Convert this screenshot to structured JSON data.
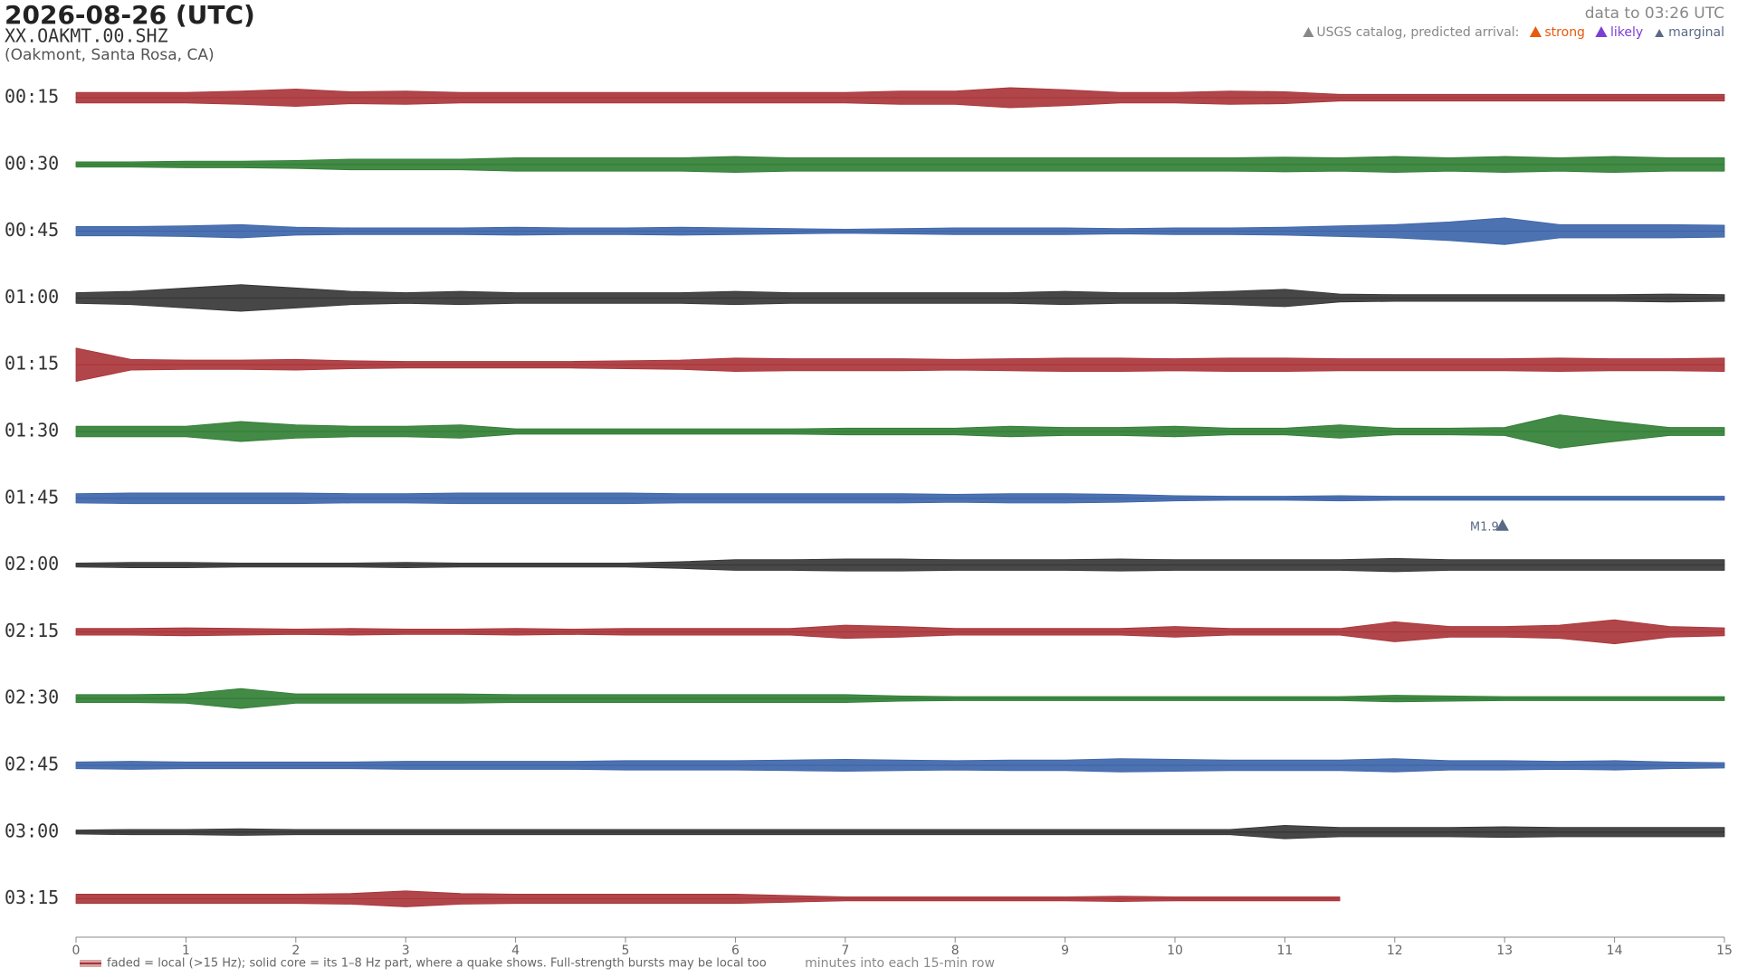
{
  "header": {
    "title": "2026-08-26  (UTC)",
    "station": "XX.OAKMT.00.SHZ",
    "location": "(Oakmont, Santa Rosa, CA)",
    "data_to": "data to 03:26 UTC"
  },
  "legend": {
    "title": "USGS catalog, predicted arrival:",
    "items": [
      {
        "label": "strong",
        "color": "#e8590c"
      },
      {
        "label": "likely",
        "color": "#7b3fd6"
      },
      {
        "label": "marginal",
        "color": "#5a6a85"
      }
    ]
  },
  "chart_data": {
    "type": "helicorder",
    "xlabel": "minutes into each 15-min row",
    "note": "faded = local (>15 Hz); solid core = its 1–8 Hz part, where a quake shows. Full-strength bursts may be local too",
    "xlim": [
      0,
      15
    ],
    "xticks": [
      0,
      1,
      2,
      3,
      4,
      5,
      6,
      7,
      8,
      9,
      10,
      11,
      12,
      13,
      14,
      15
    ],
    "x": [
      0,
      0.5,
      1,
      1.5,
      2,
      2.5,
      3,
      3.5,
      4,
      4.5,
      5,
      5.5,
      6,
      6.5,
      7,
      7.5,
      8,
      8.5,
      9,
      9.5,
      10,
      10.5,
      11,
      11.5,
      12,
      12.5,
      13,
      13.5,
      14,
      14.5,
      15
    ],
    "series": [
      {
        "name": "00:15",
        "color": "#a83236",
        "values": [
          0.08,
          0.08,
          0.08,
          0.1,
          0.13,
          0.09,
          0.1,
          0.08,
          0.08,
          0.08,
          0.08,
          0.08,
          0.08,
          0.08,
          0.08,
          0.1,
          0.1,
          0.15,
          0.12,
          0.08,
          0.08,
          0.1,
          0.09,
          0.05,
          0.05,
          0.05,
          0.05,
          0.05,
          0.05,
          0.05,
          0.05
        ]
      },
      {
        "name": "00:30",
        "color": "#2e7d32",
        "values": [
          0.04,
          0.04,
          0.05,
          0.05,
          0.06,
          0.08,
          0.08,
          0.08,
          0.1,
          0.1,
          0.1,
          0.1,
          0.12,
          0.1,
          0.1,
          0.1,
          0.1,
          0.1,
          0.1,
          0.1,
          0.1,
          0.1,
          0.11,
          0.1,
          0.12,
          0.1,
          0.12,
          0.1,
          0.12,
          0.1,
          0.1
        ]
      },
      {
        "name": "00:45",
        "color": "#3a63a8",
        "values": [
          0.07,
          0.07,
          0.08,
          0.1,
          0.06,
          0.05,
          0.05,
          0.05,
          0.06,
          0.05,
          0.05,
          0.06,
          0.05,
          0.04,
          0.03,
          0.04,
          0.05,
          0.05,
          0.05,
          0.04,
          0.05,
          0.05,
          0.06,
          0.08,
          0.1,
          0.14,
          0.2,
          0.1,
          0.1,
          0.1,
          0.09
        ]
      },
      {
        "name": "01:00",
        "color": "#333333",
        "values": [
          0.08,
          0.1,
          0.15,
          0.2,
          0.15,
          0.1,
          0.08,
          0.1,
          0.08,
          0.08,
          0.08,
          0.08,
          0.1,
          0.08,
          0.08,
          0.08,
          0.08,
          0.08,
          0.1,
          0.08,
          0.08,
          0.1,
          0.13,
          0.06,
          0.05,
          0.05,
          0.05,
          0.05,
          0.05,
          0.06,
          0.05
        ]
      },
      {
        "name": "01:15",
        "color": "#a83236",
        "values": [
          0.25,
          0.08,
          0.07,
          0.07,
          0.08,
          0.06,
          0.05,
          0.05,
          0.05,
          0.05,
          0.06,
          0.07,
          0.1,
          0.09,
          0.09,
          0.09,
          0.08,
          0.09,
          0.1,
          0.1,
          0.09,
          0.1,
          0.1,
          0.09,
          0.09,
          0.09,
          0.09,
          0.1,
          0.09,
          0.09,
          0.1
        ]
      },
      {
        "name": "01:30",
        "color": "#2e7d32",
        "values": [
          0.08,
          0.08,
          0.08,
          0.15,
          0.1,
          0.08,
          0.08,
          0.1,
          0.04,
          0.04,
          0.04,
          0.04,
          0.04,
          0.04,
          0.05,
          0.05,
          0.05,
          0.08,
          0.06,
          0.06,
          0.08,
          0.05,
          0.05,
          0.1,
          0.05,
          0.05,
          0.06,
          0.25,
          0.15,
          0.06,
          0.06
        ]
      },
      {
        "name": "01:45",
        "color": "#3a63a8",
        "values": [
          0.07,
          0.08,
          0.08,
          0.08,
          0.08,
          0.07,
          0.07,
          0.08,
          0.08,
          0.08,
          0.08,
          0.07,
          0.07,
          0.07,
          0.07,
          0.07,
          0.06,
          0.07,
          0.07,
          0.06,
          0.04,
          0.03,
          0.03,
          0.04,
          0.03,
          0.03,
          0.03,
          0.03,
          0.03,
          0.03,
          0.03
        ],
        "events": [
          {
            "label": "M1.9",
            "minute": 12.98
          }
        ]
      },
      {
        "name": "02:00",
        "color": "#333333",
        "values": [
          0.03,
          0.04,
          0.04,
          0.03,
          0.03,
          0.03,
          0.04,
          0.03,
          0.03,
          0.03,
          0.03,
          0.05,
          0.08,
          0.08,
          0.09,
          0.09,
          0.08,
          0.08,
          0.08,
          0.09,
          0.08,
          0.08,
          0.08,
          0.08,
          0.1,
          0.08,
          0.08,
          0.08,
          0.08,
          0.08,
          0.08
        ]
      },
      {
        "name": "02:15",
        "color": "#a83236",
        "values": [
          0.05,
          0.05,
          0.06,
          0.05,
          0.04,
          0.05,
          0.04,
          0.04,
          0.05,
          0.04,
          0.05,
          0.05,
          0.05,
          0.05,
          0.1,
          0.08,
          0.05,
          0.05,
          0.05,
          0.05,
          0.08,
          0.05,
          0.05,
          0.05,
          0.15,
          0.08,
          0.08,
          0.1,
          0.18,
          0.08,
          0.06
        ]
      },
      {
        "name": "02:30",
        "color": "#2e7d32",
        "values": [
          0.06,
          0.06,
          0.07,
          0.15,
          0.07,
          0.07,
          0.07,
          0.07,
          0.06,
          0.06,
          0.06,
          0.06,
          0.06,
          0.06,
          0.06,
          0.04,
          0.03,
          0.03,
          0.03,
          0.03,
          0.03,
          0.03,
          0.03,
          0.03,
          0.05,
          0.04,
          0.03,
          0.03,
          0.03,
          0.03,
          0.03
        ]
      },
      {
        "name": "02:45",
        "color": "#3a63a8",
        "values": [
          0.05,
          0.06,
          0.05,
          0.05,
          0.05,
          0.05,
          0.06,
          0.06,
          0.06,
          0.06,
          0.07,
          0.07,
          0.07,
          0.08,
          0.09,
          0.08,
          0.07,
          0.08,
          0.08,
          0.1,
          0.09,
          0.08,
          0.08,
          0.08,
          0.1,
          0.07,
          0.07,
          0.06,
          0.07,
          0.05,
          0.04
        ]
      },
      {
        "name": "03:00",
        "color": "#333333",
        "values": [
          0.03,
          0.04,
          0.04,
          0.05,
          0.04,
          0.04,
          0.04,
          0.04,
          0.04,
          0.04,
          0.04,
          0.04,
          0.04,
          0.04,
          0.04,
          0.04,
          0.04,
          0.04,
          0.04,
          0.04,
          0.04,
          0.04,
          0.1,
          0.07,
          0.07,
          0.07,
          0.08,
          0.07,
          0.07,
          0.07,
          0.07
        ]
      },
      {
        "name": "03:15",
        "color": "#a83236",
        "values": [
          0.07,
          0.07,
          0.07,
          0.07,
          0.07,
          0.08,
          0.12,
          0.08,
          0.07,
          0.07,
          0.07,
          0.07,
          0.07,
          0.05,
          0.03,
          0.03,
          0.03,
          0.03,
          0.03,
          0.04,
          0.03,
          0.03,
          0.03,
          0.03,
          null,
          null,
          null,
          null,
          null,
          null,
          null
        ]
      }
    ]
  }
}
